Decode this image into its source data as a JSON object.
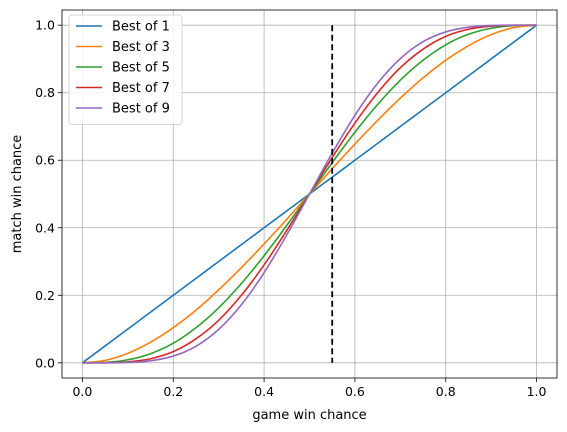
{
  "chart_data": {
    "type": "line",
    "title": "",
    "xlabel": "game win chance",
    "ylabel": "match win chance",
    "xlim": [
      0.0,
      1.0
    ],
    "ylim": [
      0.0,
      1.0
    ],
    "x_ticks": [
      "0.0",
      "0.2",
      "0.4",
      "0.6",
      "0.8",
      "1.0"
    ],
    "y_ticks": [
      "0.0",
      "0.2",
      "0.4",
      "0.6",
      "0.8",
      "1.0"
    ],
    "grid": true,
    "legend_position": "top-left",
    "x": [
      0.0,
      0.05,
      0.1,
      0.15,
      0.2,
      0.25,
      0.3,
      0.35,
      0.4,
      0.45,
      0.5,
      0.55,
      0.6,
      0.65,
      0.7,
      0.75,
      0.8,
      0.85,
      0.9,
      0.95,
      1.0
    ],
    "series": [
      {
        "name": "Best of 1",
        "color": "#1f77b4",
        "values": [
          0.0,
          0.05,
          0.1,
          0.15,
          0.2,
          0.25,
          0.3,
          0.35,
          0.4,
          0.45,
          0.5,
          0.55,
          0.6,
          0.65,
          0.7,
          0.75,
          0.8,
          0.85,
          0.9,
          0.95,
          1.0
        ]
      },
      {
        "name": "Best of 3",
        "color": "#ff7f0e",
        "values": [
          0.0,
          0.007,
          0.028,
          0.061,
          0.104,
          0.156,
          0.216,
          0.282,
          0.352,
          0.425,
          0.5,
          0.575,
          0.648,
          0.718,
          0.784,
          0.844,
          0.896,
          0.939,
          0.972,
          0.993,
          1.0
        ]
      },
      {
        "name": "Best of 5",
        "color": "#2ca02c",
        "values": [
          0.0,
          0.001,
          0.009,
          0.027,
          0.058,
          0.104,
          0.163,
          0.235,
          0.317,
          0.407,
          0.5,
          0.593,
          0.683,
          0.765,
          0.837,
          0.896,
          0.942,
          0.973,
          0.991,
          0.999,
          1.0
        ]
      },
      {
        "name": "Best of 7",
        "color": "#d62728",
        "values": [
          0.0,
          0.0,
          0.003,
          0.012,
          0.033,
          0.071,
          0.126,
          0.2,
          0.29,
          0.392,
          0.5,
          0.608,
          0.71,
          0.8,
          0.874,
          0.929,
          0.967,
          0.988,
          0.997,
          1.0,
          1.0
        ]
      },
      {
        "name": "Best of 9",
        "color": "#9467bd",
        "values": [
          0.0,
          0.0,
          0.001,
          0.006,
          0.02,
          0.049,
          0.099,
          0.172,
          0.267,
          0.379,
          0.5,
          0.621,
          0.733,
          0.828,
          0.901,
          0.951,
          0.98,
          0.994,
          0.999,
          1.0,
          1.0
        ]
      }
    ],
    "annotations": [
      {
        "type": "vertical-dashed-line",
        "x": 0.55,
        "y_range": [
          0.0,
          1.0
        ],
        "color": "#000000"
      }
    ]
  }
}
